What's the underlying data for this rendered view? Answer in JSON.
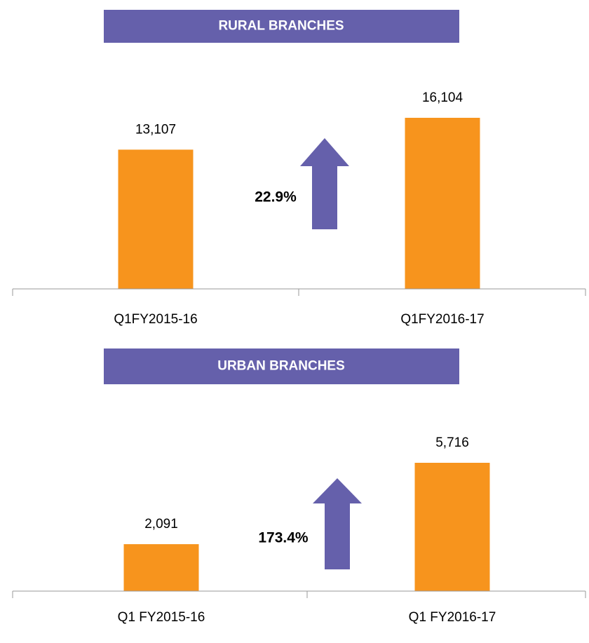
{
  "chart_data": [
    {
      "type": "bar",
      "title": "RURAL BRANCHES",
      "categories": [
        "Q1FY2015-16",
        "Q1FY2016-17"
      ],
      "values": [
        13107,
        16104
      ],
      "value_labels": [
        "13,107",
        "16,104"
      ],
      "color": "#f7941d",
      "annotation": "22.9%",
      "arrow_color": "#6560ab"
    },
    {
      "type": "bar",
      "title": "URBAN BRANCHES",
      "categories": [
        "Q1 FY2015-16",
        "Q1 FY2016-17"
      ],
      "values": [
        2091,
        5716
      ],
      "value_labels": [
        "2,091",
        "5,716"
      ],
      "color": "#f7941d",
      "annotation": "173.4%",
      "arrow_color": "#6560ab"
    }
  ]
}
